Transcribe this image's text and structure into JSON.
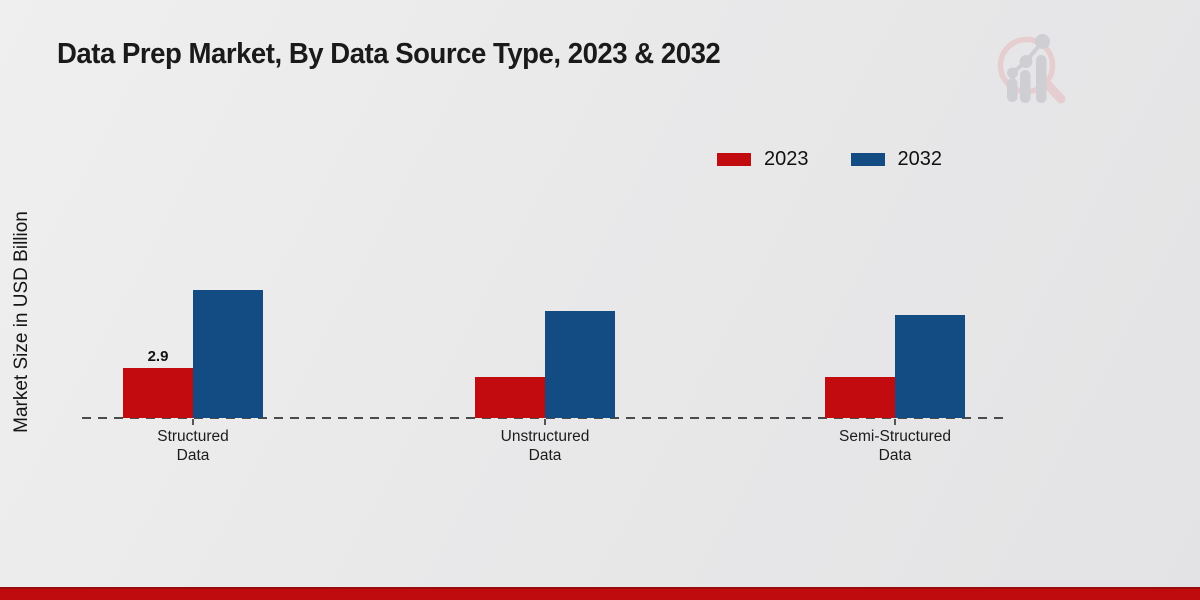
{
  "title": "Data Prep Market, By Data Source Type, 2023 & 2032",
  "y_axis_label": "Market Size in USD Billion",
  "legend": {
    "position": "top-right",
    "items": [
      {
        "label": "2023",
        "color": "#c20b0e"
      },
      {
        "label": "2032",
        "color": "#134b83"
      }
    ]
  },
  "chart_data": {
    "type": "bar",
    "title": "Data Prep Market, By Data Source Type, 2023 & 2032",
    "xlabel": "",
    "ylabel": "Market Size in USD Billion",
    "categories": [
      "Structured Data",
      "Unstructured Data",
      "Semi-Structured Data"
    ],
    "category_lines": [
      [
        "Structured",
        "Data"
      ],
      [
        "Unstructured",
        "Data"
      ],
      [
        "Semi-Structured",
        "Data"
      ]
    ],
    "series": [
      {
        "name": "2023",
        "color": "#c20b0e",
        "values": [
          2.9,
          2.4,
          2.4
        ]
      },
      {
        "name": "2032",
        "color": "#134b83",
        "values": [
          7.4,
          6.2,
          6.0
        ]
      }
    ],
    "data_labels": [
      [
        "2.9",
        "",
        ""
      ],
      [
        "",
        "",
        ""
      ]
    ],
    "ylim": [
      0,
      8
    ],
    "grid": false,
    "axis_lines": "dashed-baseline-only",
    "legend_position": "top-right"
  },
  "branding": {
    "logo": "magnifier-bar-chart-watermark",
    "footer_accent_color": "#bf0b0d"
  }
}
